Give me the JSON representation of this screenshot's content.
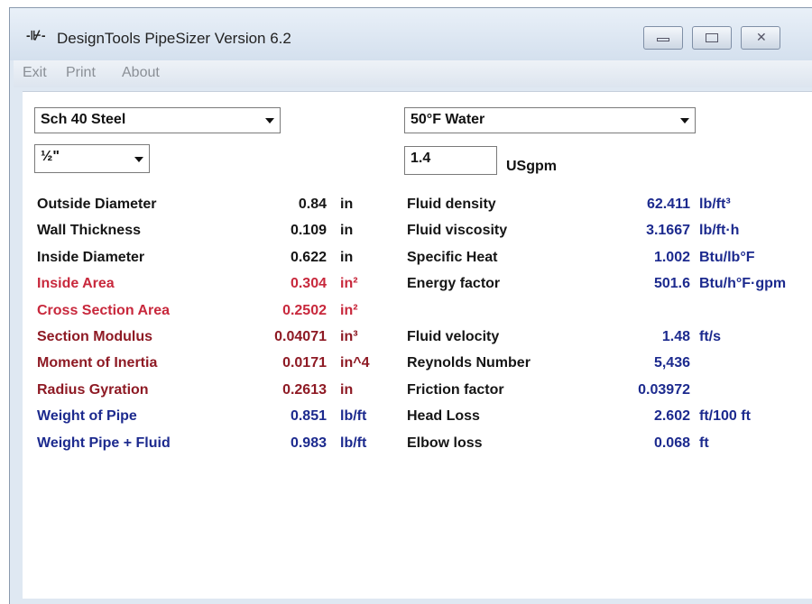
{
  "window": {
    "title": "DesignTools PipeSizer Version 6.2"
  },
  "menu": [
    "Exit",
    "Print",
    "About"
  ],
  "controls": {
    "material": "Sch 40 Steel",
    "fluid": "50°F Water",
    "pipe_size": "½\"",
    "flow_rate": "1.4",
    "flow_unit": "USgpm"
  },
  "pipe_properties": [
    {
      "label": "Outside Diameter",
      "value": "0.84",
      "unit": "in"
    },
    {
      "label": "Wall Thickness",
      "value": "0.109",
      "unit": "in"
    },
    {
      "label": "Inside Diameter",
      "value": "0.622",
      "unit": "in"
    },
    {
      "label": "Inside Area",
      "value": "0.304",
      "unit": "in²"
    },
    {
      "label": "Cross Section Area",
      "value": "0.2502",
      "unit": "in²"
    },
    {
      "label": "Section Modulus",
      "value": "0.04071",
      "unit": "in³"
    },
    {
      "label": "Moment of Inertia",
      "value": "0.0171",
      "unit": "in^4"
    },
    {
      "label": "Radius Gyration",
      "value": "0.2613",
      "unit": "in"
    },
    {
      "label": "Weight of Pipe",
      "value": "0.851",
      "unit": "lb/ft"
    },
    {
      "label": "Weight Pipe + Fluid",
      "value": "0.983",
      "unit": "lb/ft"
    }
  ],
  "fluid_properties": [
    {
      "label": "Fluid density",
      "value": "62.411",
      "unit": "lb/ft³"
    },
    {
      "label": "Fluid viscosity",
      "value": "3.1667",
      "unit": "lb/ft·h"
    },
    {
      "label": "Specific Heat",
      "value": "1.002",
      "unit": "Btu/lb°F"
    },
    {
      "label": "Energy factor",
      "value": "501.6",
      "unit": "Btu/h°F·gpm"
    }
  ],
  "flow_results": [
    {
      "label": "Fluid velocity",
      "value": "1.48",
      "unit": "ft/s"
    },
    {
      "label": "Reynolds Number",
      "value": "5,436"
    },
    {
      "label": "Friction factor",
      "value": "0.03972"
    },
    {
      "label": "Head Loss",
      "value": "2.602",
      "unit": "ft/100 ft"
    },
    {
      "label": "Elbow loss",
      "value": "0.068",
      "unit": "ft"
    }
  ]
}
